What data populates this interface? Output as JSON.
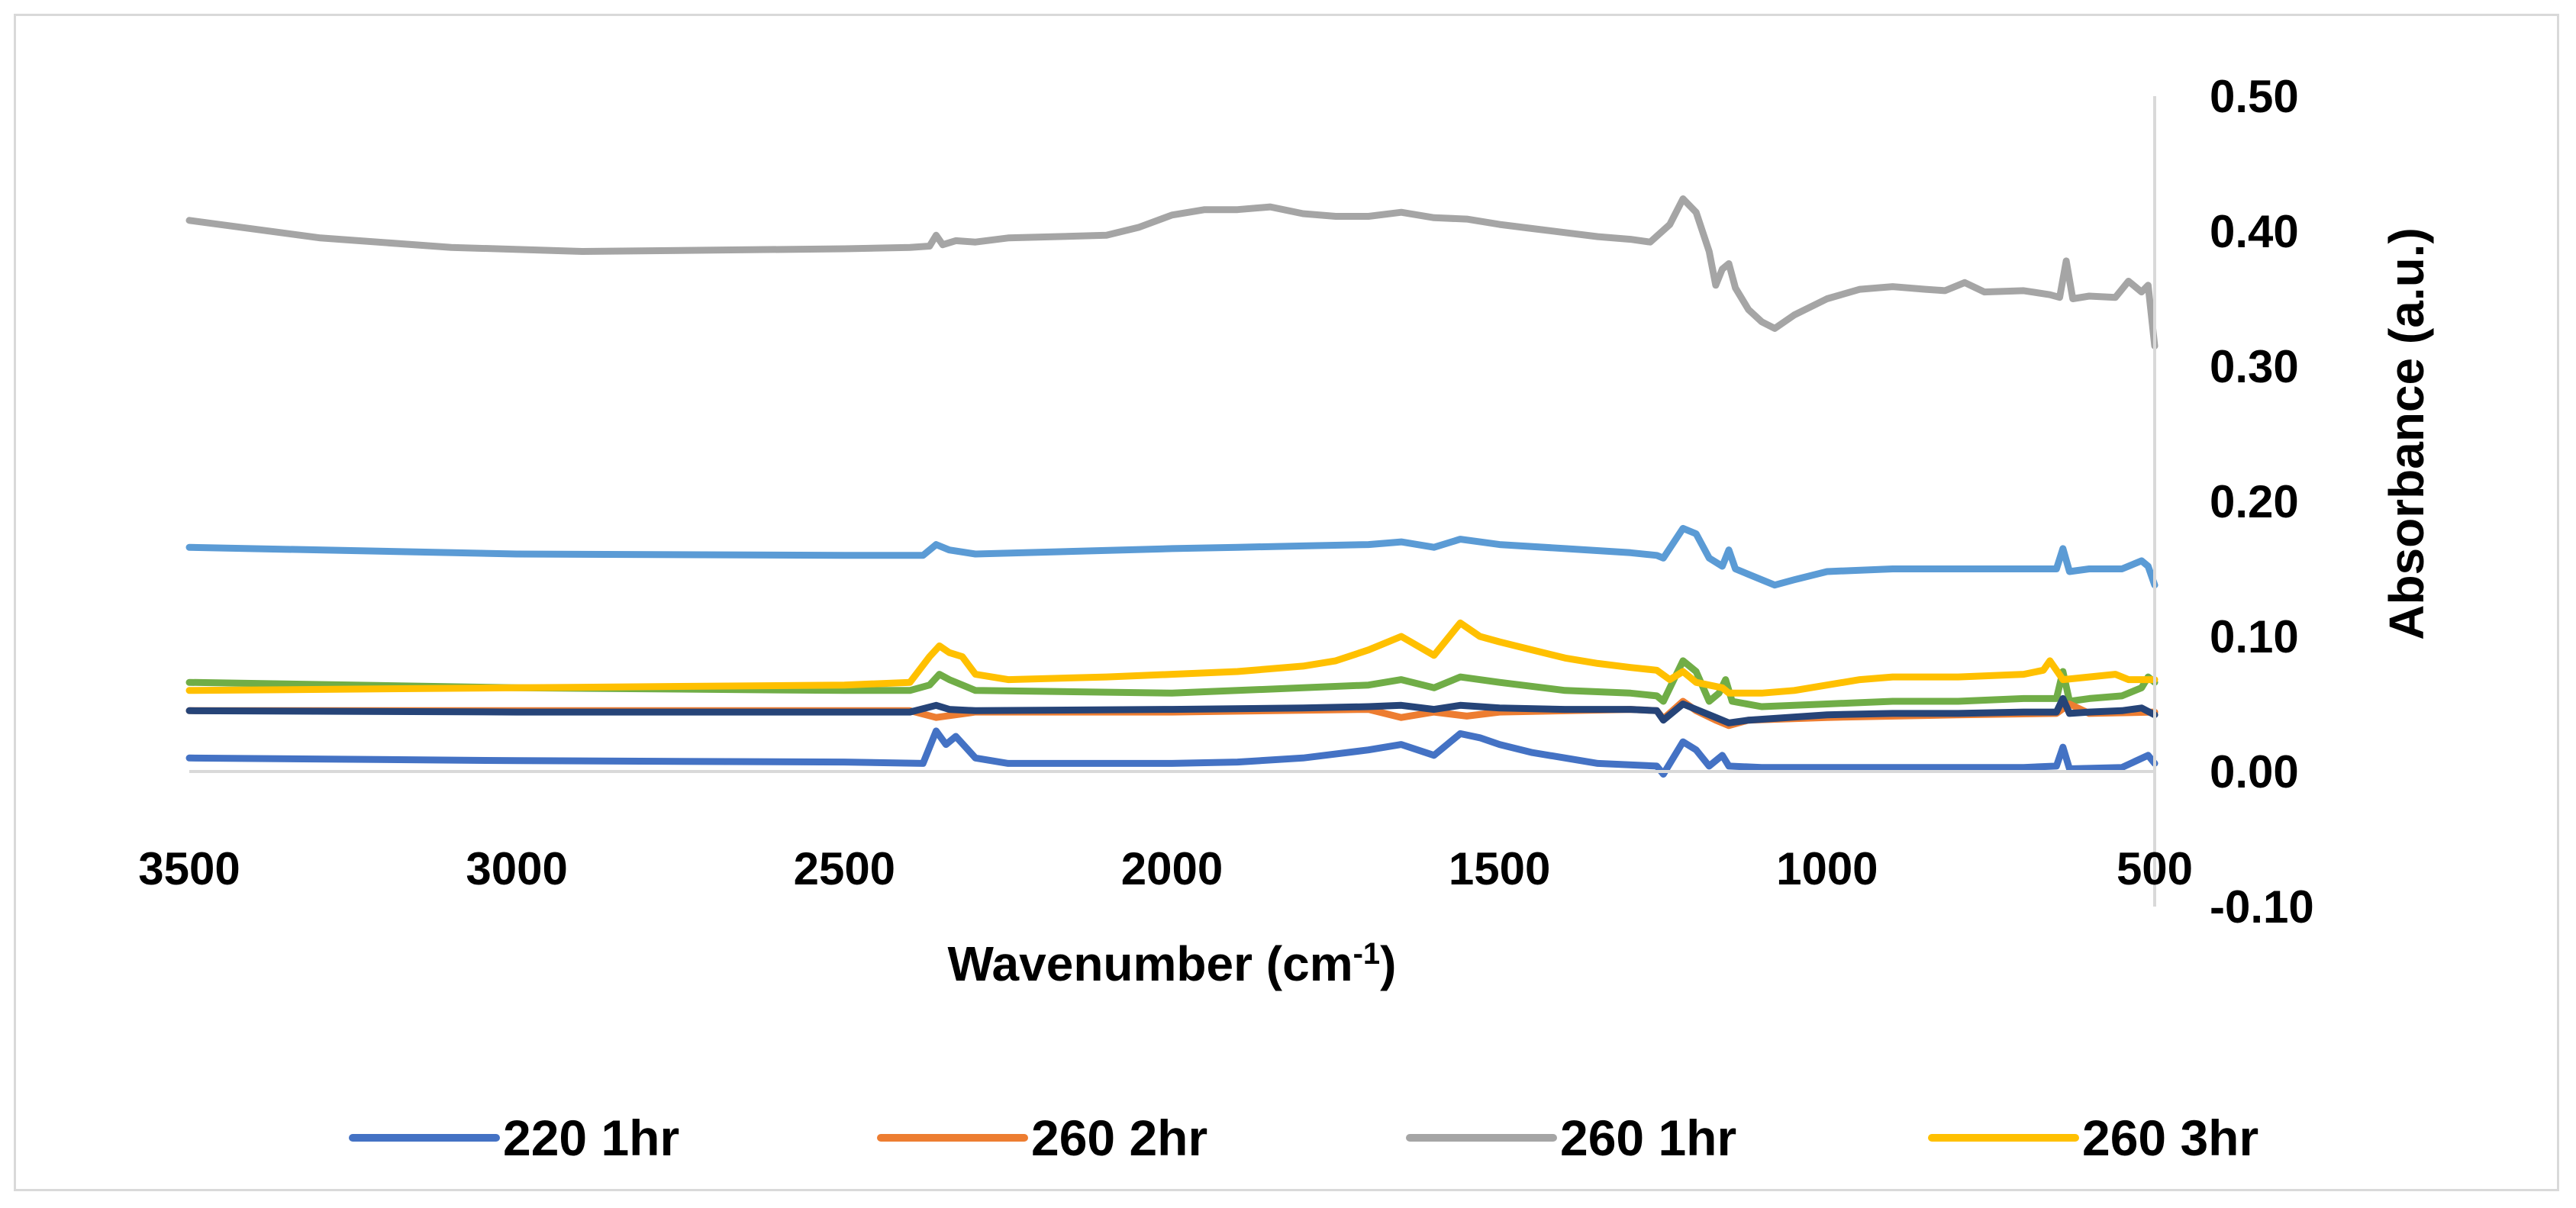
{
  "chart_data": {
    "type": "line",
    "title": "",
    "xlabel": "Wavenumber (cm",
    "xlabel_sup": "-1",
    "xlabel_tail": ")",
    "ylabel": "Absorbance (a.u.)",
    "xlim": [
      500,
      3500
    ],
    "x_reversed": true,
    "ylim": [
      -0.1,
      0.5
    ],
    "x_ticks": [
      "3500",
      "3000",
      "2500",
      "2000",
      "1500",
      "1000",
      "500"
    ],
    "x_tick_values": [
      3500,
      3000,
      2500,
      2000,
      1500,
      1000,
      500
    ],
    "y_ticks": [
      "0.50",
      "0.40",
      "0.30",
      "0.20",
      "0.10",
      "0.00",
      "-0.10"
    ],
    "y_tick_values": [
      0.5,
      0.4,
      0.3,
      0.2,
      0.1,
      0.0,
      -0.1
    ],
    "legend_position": "bottom",
    "series": [
      {
        "name": "220 1hr",
        "color": "#4472c4",
        "legend": true,
        "points": [
          [
            3500,
            0.01
          ],
          [
            3000,
            0.008
          ],
          [
            2500,
            0.007
          ],
          [
            2380,
            0.006
          ],
          [
            2360,
            0.03
          ],
          [
            2345,
            0.02
          ],
          [
            2330,
            0.026
          ],
          [
            2300,
            0.01
          ],
          [
            2250,
            0.006
          ],
          [
            2000,
            0.006
          ],
          [
            1900,
            0.007
          ],
          [
            1800,
            0.01
          ],
          [
            1700,
            0.016
          ],
          [
            1650,
            0.02
          ],
          [
            1600,
            0.012
          ],
          [
            1560,
            0.028
          ],
          [
            1530,
            0.025
          ],
          [
            1500,
            0.02
          ],
          [
            1450,
            0.014
          ],
          [
            1350,
            0.006
          ],
          [
            1260,
            0.004
          ],
          [
            1250,
            -0.002
          ],
          [
            1220,
            0.022
          ],
          [
            1200,
            0.016
          ],
          [
            1180,
            0.004
          ],
          [
            1160,
            0.012
          ],
          [
            1150,
            0.004
          ],
          [
            1100,
            0.003
          ],
          [
            1000,
            0.003
          ],
          [
            700,
            0.003
          ],
          [
            650,
            0.004
          ],
          [
            640,
            0.018
          ],
          [
            630,
            0.002
          ],
          [
            550,
            0.003
          ],
          [
            510,
            0.012
          ],
          [
            500,
            0.006
          ]
        ]
      },
      {
        "name": "260 2hr",
        "color": "#ed7d31",
        "legend": true,
        "points": [
          [
            3500,
            0.045
          ],
          [
            3000,
            0.045
          ],
          [
            2500,
            0.045
          ],
          [
            2400,
            0.045
          ],
          [
            2360,
            0.04
          ],
          [
            2300,
            0.044
          ],
          [
            2000,
            0.044
          ],
          [
            1700,
            0.046
          ],
          [
            1650,
            0.04
          ],
          [
            1600,
            0.044
          ],
          [
            1550,
            0.041
          ],
          [
            1500,
            0.044
          ],
          [
            1300,
            0.046
          ],
          [
            1260,
            0.045
          ],
          [
            1250,
            0.039
          ],
          [
            1220,
            0.052
          ],
          [
            1200,
            0.045
          ],
          [
            1170,
            0.038
          ],
          [
            1150,
            0.034
          ],
          [
            1120,
            0.038
          ],
          [
            1000,
            0.04
          ],
          [
            800,
            0.042
          ],
          [
            650,
            0.043
          ],
          [
            630,
            0.05
          ],
          [
            600,
            0.043
          ],
          [
            500,
            0.044
          ]
        ]
      },
      {
        "name": "260 1hr",
        "color": "#a5a5a5",
        "legend": true,
        "points": [
          [
            3500,
            0.408
          ],
          [
            3300,
            0.395
          ],
          [
            3100,
            0.388
          ],
          [
            2900,
            0.385
          ],
          [
            2700,
            0.386
          ],
          [
            2500,
            0.387
          ],
          [
            2400,
            0.388
          ],
          [
            2370,
            0.389
          ],
          [
            2360,
            0.397
          ],
          [
            2350,
            0.39
          ],
          [
            2330,
            0.393
          ],
          [
            2300,
            0.392
          ],
          [
            2250,
            0.395
          ],
          [
            2100,
            0.397
          ],
          [
            2050,
            0.403
          ],
          [
            2000,
            0.412
          ],
          [
            1950,
            0.416
          ],
          [
            1900,
            0.416
          ],
          [
            1850,
            0.418
          ],
          [
            1800,
            0.413
          ],
          [
            1750,
            0.411
          ],
          [
            1700,
            0.411
          ],
          [
            1650,
            0.414
          ],
          [
            1600,
            0.41
          ],
          [
            1550,
            0.409
          ],
          [
            1500,
            0.405
          ],
          [
            1450,
            0.402
          ],
          [
            1400,
            0.399
          ],
          [
            1350,
            0.396
          ],
          [
            1300,
            0.394
          ],
          [
            1270,
            0.392
          ],
          [
            1240,
            0.405
          ],
          [
            1220,
            0.424
          ],
          [
            1200,
            0.414
          ],
          [
            1180,
            0.385
          ],
          [
            1170,
            0.36
          ],
          [
            1160,
            0.372
          ],
          [
            1150,
            0.376
          ],
          [
            1140,
            0.358
          ],
          [
            1120,
            0.342
          ],
          [
            1100,
            0.333
          ],
          [
            1080,
            0.328
          ],
          [
            1050,
            0.338
          ],
          [
            1000,
            0.35
          ],
          [
            950,
            0.357
          ],
          [
            900,
            0.359
          ],
          [
            850,
            0.357
          ],
          [
            820,
            0.356
          ],
          [
            790,
            0.362
          ],
          [
            760,
            0.355
          ],
          [
            700,
            0.356
          ],
          [
            660,
            0.353
          ],
          [
            645,
            0.351
          ],
          [
            635,
            0.378
          ],
          [
            625,
            0.35
          ],
          [
            600,
            0.352
          ],
          [
            560,
            0.351
          ],
          [
            540,
            0.363
          ],
          [
            520,
            0.355
          ],
          [
            510,
            0.36
          ],
          [
            500,
            0.315
          ]
        ]
      },
      {
        "name": "260 3hr",
        "color": "#ffc000",
        "legend": true,
        "points": [
          [
            3500,
            0.06
          ],
          [
            3000,
            0.062
          ],
          [
            2500,
            0.064
          ],
          [
            2400,
            0.066
          ],
          [
            2370,
            0.085
          ],
          [
            2355,
            0.093
          ],
          [
            2340,
            0.088
          ],
          [
            2320,
            0.085
          ],
          [
            2300,
            0.072
          ],
          [
            2250,
            0.068
          ],
          [
            2100,
            0.07
          ],
          [
            2000,
            0.072
          ],
          [
            1900,
            0.074
          ],
          [
            1800,
            0.078
          ],
          [
            1750,
            0.082
          ],
          [
            1700,
            0.09
          ],
          [
            1650,
            0.1
          ],
          [
            1600,
            0.086
          ],
          [
            1560,
            0.11
          ],
          [
            1530,
            0.1
          ],
          [
            1500,
            0.096
          ],
          [
            1450,
            0.09
          ],
          [
            1400,
            0.084
          ],
          [
            1350,
            0.08
          ],
          [
            1300,
            0.077
          ],
          [
            1260,
            0.075
          ],
          [
            1240,
            0.068
          ],
          [
            1220,
            0.074
          ],
          [
            1200,
            0.066
          ],
          [
            1160,
            0.062
          ],
          [
            1150,
            0.058
          ],
          [
            1100,
            0.058
          ],
          [
            1050,
            0.06
          ],
          [
            1000,
            0.064
          ],
          [
            950,
            0.068
          ],
          [
            900,
            0.07
          ],
          [
            800,
            0.07
          ],
          [
            700,
            0.072
          ],
          [
            670,
            0.075
          ],
          [
            660,
            0.082
          ],
          [
            650,
            0.075
          ],
          [
            640,
            0.068
          ],
          [
            600,
            0.07
          ],
          [
            560,
            0.072
          ],
          [
            540,
            0.068
          ],
          [
            500,
            0.068
          ]
        ]
      },
      {
        "name": "",
        "color": "#5b9bd5",
        "legend": false,
        "points": [
          [
            3500,
            0.166
          ],
          [
            3000,
            0.161
          ],
          [
            2500,
            0.16
          ],
          [
            2380,
            0.16
          ],
          [
            2360,
            0.168
          ],
          [
            2340,
            0.164
          ],
          [
            2300,
            0.161
          ],
          [
            2000,
            0.165
          ],
          [
            1900,
            0.166
          ],
          [
            1800,
            0.167
          ],
          [
            1700,
            0.168
          ],
          [
            1650,
            0.17
          ],
          [
            1600,
            0.166
          ],
          [
            1560,
            0.172
          ],
          [
            1500,
            0.168
          ],
          [
            1400,
            0.165
          ],
          [
            1300,
            0.162
          ],
          [
            1260,
            0.16
          ],
          [
            1250,
            0.158
          ],
          [
            1220,
            0.18
          ],
          [
            1200,
            0.176
          ],
          [
            1180,
            0.158
          ],
          [
            1160,
            0.152
          ],
          [
            1150,
            0.164
          ],
          [
            1140,
            0.15
          ],
          [
            1100,
            0.142
          ],
          [
            1080,
            0.138
          ],
          [
            1050,
            0.142
          ],
          [
            1000,
            0.148
          ],
          [
            900,
            0.15
          ],
          [
            800,
            0.15
          ],
          [
            700,
            0.15
          ],
          [
            650,
            0.15
          ],
          [
            640,
            0.165
          ],
          [
            630,
            0.148
          ],
          [
            600,
            0.15
          ],
          [
            550,
            0.15
          ],
          [
            520,
            0.156
          ],
          [
            510,
            0.152
          ],
          [
            500,
            0.138
          ]
        ]
      },
      {
        "name": "",
        "color": "#70ad47",
        "legend": false,
        "points": [
          [
            3500,
            0.066
          ],
          [
            3000,
            0.062
          ],
          [
            2500,
            0.06
          ],
          [
            2400,
            0.06
          ],
          [
            2370,
            0.064
          ],
          [
            2355,
            0.072
          ],
          [
            2340,
            0.068
          ],
          [
            2300,
            0.06
          ],
          [
            2000,
            0.058
          ],
          [
            1900,
            0.06
          ],
          [
            1800,
            0.062
          ],
          [
            1700,
            0.064
          ],
          [
            1650,
            0.068
          ],
          [
            1600,
            0.062
          ],
          [
            1560,
            0.07
          ],
          [
            1500,
            0.066
          ],
          [
            1400,
            0.06
          ],
          [
            1300,
            0.058
          ],
          [
            1260,
            0.056
          ],
          [
            1250,
            0.052
          ],
          [
            1220,
            0.082
          ],
          [
            1200,
            0.074
          ],
          [
            1180,
            0.052
          ],
          [
            1165,
            0.058
          ],
          [
            1155,
            0.068
          ],
          [
            1145,
            0.052
          ],
          [
            1100,
            0.048
          ],
          [
            1000,
            0.05
          ],
          [
            900,
            0.052
          ],
          [
            800,
            0.052
          ],
          [
            700,
            0.054
          ],
          [
            650,
            0.054
          ],
          [
            640,
            0.074
          ],
          [
            630,
            0.052
          ],
          [
            600,
            0.054
          ],
          [
            550,
            0.056
          ],
          [
            520,
            0.062
          ],
          [
            510,
            0.07
          ],
          [
            500,
            0.066
          ]
        ]
      },
      {
        "name": "",
        "color": "#264478",
        "legend": false,
        "points": [
          [
            3500,
            0.045
          ],
          [
            3000,
            0.044
          ],
          [
            2500,
            0.044
          ],
          [
            2400,
            0.044
          ],
          [
            2360,
            0.049
          ],
          [
            2340,
            0.046
          ],
          [
            2300,
            0.045
          ],
          [
            2000,
            0.046
          ],
          [
            1800,
            0.047
          ],
          [
            1700,
            0.048
          ],
          [
            1650,
            0.049
          ],
          [
            1600,
            0.046
          ],
          [
            1560,
            0.049
          ],
          [
            1500,
            0.047
          ],
          [
            1400,
            0.046
          ],
          [
            1300,
            0.046
          ],
          [
            1260,
            0.045
          ],
          [
            1250,
            0.038
          ],
          [
            1220,
            0.05
          ],
          [
            1200,
            0.046
          ],
          [
            1170,
            0.04
          ],
          [
            1150,
            0.036
          ],
          [
            1120,
            0.038
          ],
          [
            1000,
            0.042
          ],
          [
            900,
            0.043
          ],
          [
            800,
            0.043
          ],
          [
            700,
            0.044
          ],
          [
            650,
            0.044
          ],
          [
            640,
            0.054
          ],
          [
            630,
            0.043
          ],
          [
            600,
            0.044
          ],
          [
            550,
            0.045
          ],
          [
            520,
            0.047
          ],
          [
            500,
            0.042
          ]
        ]
      }
    ]
  }
}
